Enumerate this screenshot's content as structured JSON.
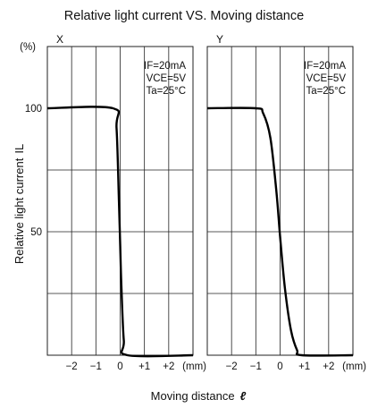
{
  "chart_data": {
    "type": "line",
    "title": "Relative light current VS. Moving distance",
    "xlabel": "Moving distance",
    "xlabel_symbol": "ℓ",
    "ylabel": "Relative light current",
    "ylabel_symbol": "IL",
    "y_unit": "(%)",
    "x_unit": "(mm)",
    "xlim": [
      -3,
      3
    ],
    "ylim": [
      0,
      100
    ],
    "y_ticks": [
      {
        "value": 100,
        "label": "100"
      },
      {
        "value": 50,
        "label": "50"
      }
    ],
    "grid": true,
    "panels": [
      {
        "name": "X",
        "conditions": [
          "IF=20mA",
          "VCE=5V",
          "Ta=25°C"
        ],
        "x_ticks": [
          {
            "value": -2,
            "label": "−2"
          },
          {
            "value": -1,
            "label": "−1"
          },
          {
            "value": 0,
            "label": "0"
          },
          {
            "value": 1,
            "label": "+1"
          },
          {
            "value": 2,
            "label": "+2"
          }
        ],
        "x": [
          -3,
          -0.3,
          -0.15,
          -0.05,
          0,
          0.05,
          0.15,
          0.3,
          3
        ],
        "y": [
          100,
          100,
          92,
          62,
          45,
          28,
          6,
          0,
          0
        ]
      },
      {
        "name": "Y",
        "conditions": [
          "IF=20mA",
          "VCE=5V",
          "Ta=25°C"
        ],
        "x_ticks": [
          {
            "value": -2,
            "label": "−2"
          },
          {
            "value": -1,
            "label": "−1"
          },
          {
            "value": 0,
            "label": "0"
          },
          {
            "value": 1,
            "label": "+1"
          },
          {
            "value": 2,
            "label": "+2"
          }
        ],
        "x": [
          -3,
          -1.0,
          -0.7,
          -0.4,
          -0.15,
          0,
          0.2,
          0.45,
          0.7,
          0.9,
          3
        ],
        "y": [
          100,
          100,
          98,
          88,
          66,
          48,
          27,
          10,
          2,
          0,
          0
        ]
      }
    ]
  }
}
